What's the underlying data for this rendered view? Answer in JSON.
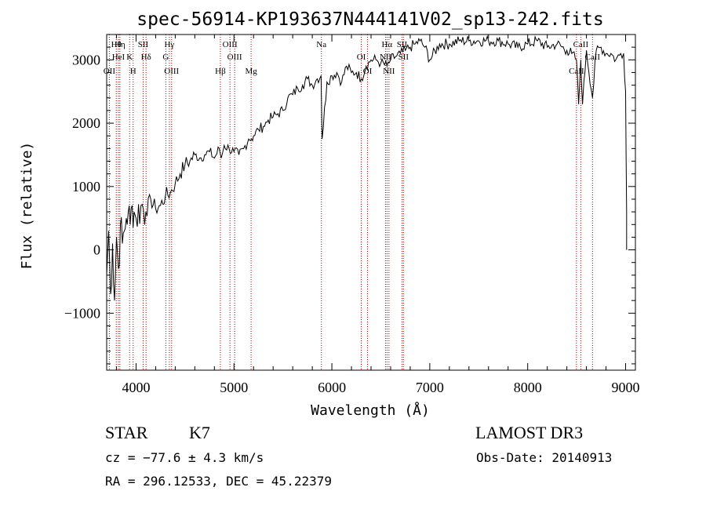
{
  "chart_data": {
    "type": "line",
    "title": "spec-56914-KP193637N444141V02_sp13-242.fits",
    "xlabel": "Wavelength (Å)",
    "ylabel": "Flux (relative)",
    "xlim": [
      3700,
      9100
    ],
    "ylim": [
      -1900,
      3400
    ],
    "xticks": [
      4000,
      5000,
      6000,
      7000,
      8000,
      9000
    ],
    "yticks": [
      -1000,
      0,
      1000,
      2000,
      3000
    ],
    "grid": false,
    "series": [
      {
        "x": [
          3700,
          3720,
          3740,
          3760,
          3780,
          3800,
          3820,
          3840,
          3860,
          3880,
          3900,
          3920,
          3940,
          3960,
          3980,
          4000,
          4050,
          4100,
          4150,
          4200,
          4250,
          4300,
          4350,
          4400,
          4450,
          4500,
          4550,
          4600,
          4650,
          4700,
          4750,
          4800,
          4850,
          4870,
          4900,
          4950,
          5000,
          5050,
          5100,
          5150,
          5180,
          5200,
          5250,
          5300,
          5350,
          5400,
          5450,
          5500,
          5550,
          5600,
          5650,
          5700,
          5750,
          5800,
          5850,
          5890,
          5900,
          5950,
          6000,
          6050,
          6100,
          6150,
          6200,
          6250,
          6300,
          6350,
          6400,
          6450,
          6500,
          6563,
          6600,
          6650,
          6700,
          6750,
          6800,
          6850,
          6900,
          6950,
          7000,
          7100,
          7200,
          7300,
          7400,
          7500,
          7600,
          7700,
          7800,
          7900,
          8000,
          8100,
          8200,
          8300,
          8400,
          8450,
          8498,
          8520,
          8542,
          8560,
          8600,
          8662,
          8700,
          8750,
          8800,
          8850,
          8900,
          8950,
          8980,
          9000,
          9010
        ],
        "y": [
          -400,
          300,
          -700,
          100,
          -800,
          200,
          -300,
          400,
          100,
          300,
          500,
          600,
          400,
          700,
          600,
          500,
          700,
          600,
          800,
          650,
          700,
          850,
          900,
          1050,
          1200,
          1350,
          1400,
          1500,
          1450,
          1500,
          1550,
          1450,
          1600,
          1450,
          1650,
          1600,
          1550,
          1500,
          1600,
          1750,
          1750,
          1800,
          1900,
          1950,
          2050,
          2100,
          2150,
          2200,
          2400,
          2450,
          2550,
          2600,
          2700,
          2600,
          2700,
          2750,
          1750,
          2650,
          2750,
          2800,
          2650,
          2900,
          2800,
          2800,
          2700,
          2900,
          3000,
          3000,
          2950,
          2900,
          3000,
          3050,
          3100,
          3150,
          3200,
          3250,
          3300,
          3200,
          3000,
          3250,
          3250,
          3300,
          3300,
          3300,
          3300,
          3300,
          3250,
          3200,
          3250,
          3300,
          3200,
          3250,
          3150,
          3100,
          3000,
          2300,
          3000,
          2300,
          3150,
          2400,
          3150,
          3200,
          3100,
          3100,
          3000,
          3100,
          3100,
          2500,
          600
        ]
      }
    ],
    "line_markers": [
      {
        "label": "Hθ",
        "x": 3798
      },
      {
        "label": "HeI",
        "x": 3820
      },
      {
        "label": "OII",
        "x": 3727
      },
      {
        "label": "Hη",
        "x": 3835
      },
      {
        "label": "K",
        "x": 3934
      },
      {
        "label": "H",
        "x": 3970
      },
      {
        "label": "SII",
        "x": 4072
      },
      {
        "label": "Hδ",
        "x": 4102
      },
      {
        "label": "OIII",
        "x": 4363
      },
      {
        "label": "Hγ",
        "x": 4340
      },
      {
        "label": "G",
        "x": 4304
      },
      {
        "label": "Hβ",
        "x": 4861
      },
      {
        "label": "OIII",
        "x": 4959
      },
      {
        "label": "OIII",
        "x": 5007
      },
      {
        "label": "Mg",
        "x": 5175
      },
      {
        "label": "Na",
        "x": 5893
      },
      {
        "label": "OI",
        "x": 6300
      },
      {
        "label": "OI",
        "x": 6364
      },
      {
        "label": "Hα",
        "x": 6563
      },
      {
        "label": "NII",
        "x": 6548
      },
      {
        "label": "NII",
        "x": 6583
      },
      {
        "label": "SII",
        "x": 6716
      },
      {
        "label": "SII",
        "x": 6731
      },
      {
        "label": "CaII",
        "x": 8498
      },
      {
        "label": "CaII",
        "x": 8542
      },
      {
        "label": "CaII",
        "x": 8662
      }
    ]
  },
  "info": {
    "class": "STAR",
    "subclass": "K7",
    "survey": "LAMOST DR3",
    "cz": "cz = −77.6 ± 4.3 km/s",
    "obs_date": "Obs-Date: 20140913",
    "coords": "RA = 296.12533, DEC =  45.22379"
  }
}
